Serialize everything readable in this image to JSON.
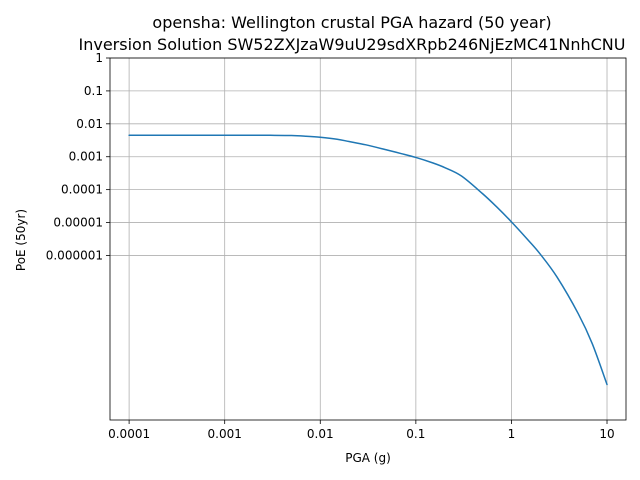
{
  "chart_data": {
    "type": "line",
    "title_line1": "opensha: Wellington crustal PGA hazard (50 year)",
    "title_line2": "Inversion Solution SW52ZXJzaW9uU29sdXRpb246NjEzMC41NnhCNU",
    "xlabel": "PGA (g)",
    "ylabel": "PoE (50yr)",
    "xscale": "log",
    "yscale": "log",
    "xlim": [
      6.31e-05,
      15.8
    ],
    "ylim": [
      1e-11,
      1
    ],
    "grid": true,
    "x_ticks": [
      {
        "value": 0.0001,
        "label": "0.0001"
      },
      {
        "value": 0.001,
        "label": "0.001"
      },
      {
        "value": 0.01,
        "label": "0.01"
      },
      {
        "value": 0.1,
        "label": "0.1"
      },
      {
        "value": 1,
        "label": "1"
      },
      {
        "value": 10,
        "label": "10"
      }
    ],
    "y_ticks": [
      {
        "value": 1,
        "label": "1"
      },
      {
        "value": 0.1,
        "label": "0.1"
      },
      {
        "value": 0.01,
        "label": "0.01"
      },
      {
        "value": 0.001,
        "label": "0.001"
      },
      {
        "value": 0.0001,
        "label": "0.0001"
      },
      {
        "value": 1e-05,
        "label": "0.00001"
      },
      {
        "value": 1e-06,
        "label": "0.000001"
      }
    ],
    "series": [
      {
        "color": "#1f77b4",
        "x": [
          0.0001,
          0.0002,
          0.0005,
          0.001,
          0.002,
          0.003,
          0.005,
          0.007,
          0.01,
          0.015,
          0.02,
          0.03,
          0.05,
          0.07,
          0.1,
          0.15,
          0.2,
          0.3,
          0.5,
          0.7,
          1,
          1.5,
          2,
          3,
          5,
          7,
          10
        ],
        "y": [
          0.0045,
          0.0045,
          0.0045,
          0.0045,
          0.0045,
          0.00448,
          0.0044,
          0.0042,
          0.0039,
          0.0034,
          0.0029,
          0.0023,
          0.0016,
          0.00125,
          0.00095,
          0.00065,
          0.00047,
          0.00026,
          7.5e-05,
          3e-05,
          1.05e-05,
          2.9e-06,
          1.1e-06,
          2.2e-07,
          1.7e-08,
          2.1e-09,
          1.2e-10
        ]
      }
    ]
  }
}
